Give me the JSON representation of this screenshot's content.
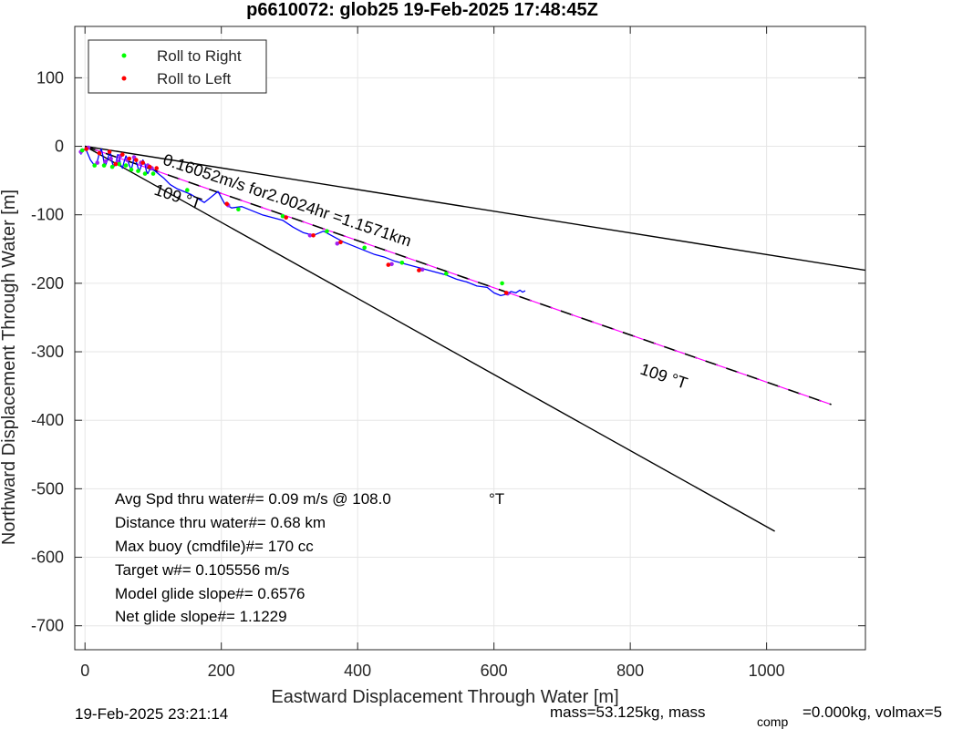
{
  "chart_data": {
    "type": "line",
    "title": "p6610072: glob25 19-Feb-2025 17:48:45Z",
    "xlabel": "Eastward Displacement Through Water [m]",
    "ylabel": "Northward Displacement Through Water [m]",
    "xlim": [
      -15,
      1145
    ],
    "ylim": [
      -735,
      175
    ],
    "xticks": [
      0,
      200,
      400,
      600,
      800,
      1000
    ],
    "yticks": [
      100,
      0,
      -100,
      -200,
      -300,
      -400,
      -500,
      -600,
      -700
    ],
    "xtick_labels": [
      "0",
      "200",
      "400",
      "600",
      "800",
      "1000"
    ],
    "ytick_labels": [
      "100",
      "0",
      "-100",
      "-200",
      "-300",
      "-400",
      "-500",
      "-600",
      "-700"
    ],
    "grid": true,
    "legend_position": "top-left",
    "legend": [
      {
        "label": "Roll to Right",
        "color": "#00ff00"
      },
      {
        "label": "Roll to Left",
        "color": "#ff0000"
      }
    ],
    "series": [
      {
        "style": "black-solid",
        "x": [
          0,
          1145
        ],
        "y": [
          0,
          -181
        ]
      },
      {
        "style": "black-solid",
        "x": [
          0,
          1012
        ],
        "y": [
          0,
          -562
        ]
      },
      {
        "style": "black-dashed",
        "x": [
          0,
          1095
        ],
        "y": [
          0,
          -377
        ]
      },
      {
        "style": "magenta",
        "x": [
          0,
          1095
        ],
        "y": [
          0,
          -377
        ]
      }
    ],
    "track": {
      "color": "#0000ff",
      "x": [
        -6,
        -4,
        2,
        8,
        14,
        18,
        21,
        24,
        26,
        28,
        30,
        33,
        36,
        38,
        40,
        42,
        45,
        48,
        50,
        52,
        55,
        57,
        60,
        62,
        65,
        68,
        70,
        72,
        75,
        78,
        80,
        82,
        85,
        88,
        90,
        92,
        95,
        100,
        105,
        115,
        125,
        135,
        145,
        155,
        165,
        175,
        185,
        195,
        205,
        215,
        230,
        245,
        260,
        275,
        290,
        305,
        320,
        335,
        350,
        365,
        380,
        395,
        410,
        425,
        440,
        455,
        470,
        485,
        500,
        515,
        530,
        545,
        560,
        575,
        590,
        600,
        610,
        618,
        625,
        632,
        638,
        642,
        646
      ],
      "y": [
        -12,
        -4,
        -6,
        -20,
        -28,
        -22,
        -10,
        -4,
        -12,
        -24,
        -28,
        -20,
        -8,
        -12,
        -24,
        -30,
        -26,
        -12,
        -14,
        -26,
        -32,
        -24,
        -14,
        -18,
        -28,
        -34,
        -26,
        -16,
        -22,
        -32,
        -36,
        -30,
        -20,
        -26,
        -36,
        -40,
        -34,
        -34,
        -38,
        -46,
        -56,
        -62,
        -66,
        -70,
        -76,
        -82,
        -74,
        -66,
        -84,
        -90,
        -88,
        -94,
        -100,
        -104,
        -108,
        -118,
        -126,
        -130,
        -124,
        -132,
        -140,
        -146,
        -152,
        -158,
        -162,
        -168,
        -172,
        -176,
        -180,
        -184,
        -188,
        -194,
        -198,
        -204,
        -206,
        -214,
        -218,
        -216,
        -212,
        -214,
        -210,
        -213,
        -211
      ]
    },
    "markers_right": {
      "color": "#00ff00",
      "x": [
        -4,
        14,
        28,
        40,
        50,
        60,
        68,
        78,
        88,
        100,
        150,
        225,
        290,
        355,
        410,
        465,
        530,
        612
      ],
      "y": [
        -6,
        -28,
        -28,
        -30,
        -26,
        -28,
        -34,
        -36,
        -40,
        -40,
        -64,
        -92,
        -102,
        -124,
        -148,
        -170,
        -186,
        -200
      ]
    },
    "markers_left": {
      "color": "#ff0000",
      "x": [
        2,
        21,
        36,
        45,
        55,
        65,
        75,
        85,
        95,
        105,
        208,
        295,
        335,
        375,
        445,
        490,
        618
      ],
      "y": [
        -4,
        -10,
        -8,
        -26,
        -12,
        -18,
        -20,
        -24,
        -30,
        -32,
        -84,
        -104,
        -130,
        -140,
        -173,
        -181,
        -214
      ]
    },
    "markers_purple": {
      "color": "#a020f0",
      "x": [
        -6,
        5,
        18,
        30,
        38,
        48,
        52,
        62,
        72,
        82,
        92,
        98,
        210,
        330,
        370,
        450,
        495,
        620
      ],
      "y": [
        -8,
        -2,
        -24,
        -22,
        -18,
        -22,
        -14,
        -20,
        -16,
        -24,
        -28,
        -32,
        -86,
        -130,
        -142,
        -172,
        -180,
        -215
      ]
    },
    "annotations": [
      {
        "text": "0.16052m/s for2.0024hr =1.1571km",
        "x": 113,
        "y": -26,
        "angle": 18.5
      },
      {
        "text": "109 °T",
        "x": 100,
        "y": -70,
        "angle": 18.5
      },
      {
        "text": "109 °T",
        "x": 813,
        "y": -332,
        "angle": 18.5
      }
    ],
    "stats": [
      {
        "label": "Avg Spd thru water#=",
        "value": " 0.09 m/s @ 108.0",
        "unit": "°T"
      },
      {
        "label": "Distance thru water#=",
        "value": " 0.68 km"
      },
      {
        "label": "Max buoy (cmdfile)#=",
        "value": " 170 cc"
      },
      {
        "label": "Target w#=",
        "value": " 0.105556 m/s"
      },
      {
        "label": "Model glide slope#=",
        "value": " 0.6576"
      },
      {
        "label": "Net glide slope#=",
        "value": " 1.1229"
      }
    ]
  },
  "footer": {
    "timestamp": "19-Feb-2025 23:21:14",
    "mass_text": "mass=53.125kg, mass",
    "comp_sub": "comp",
    "rest_text": "=0.000kg, volmax=5"
  }
}
